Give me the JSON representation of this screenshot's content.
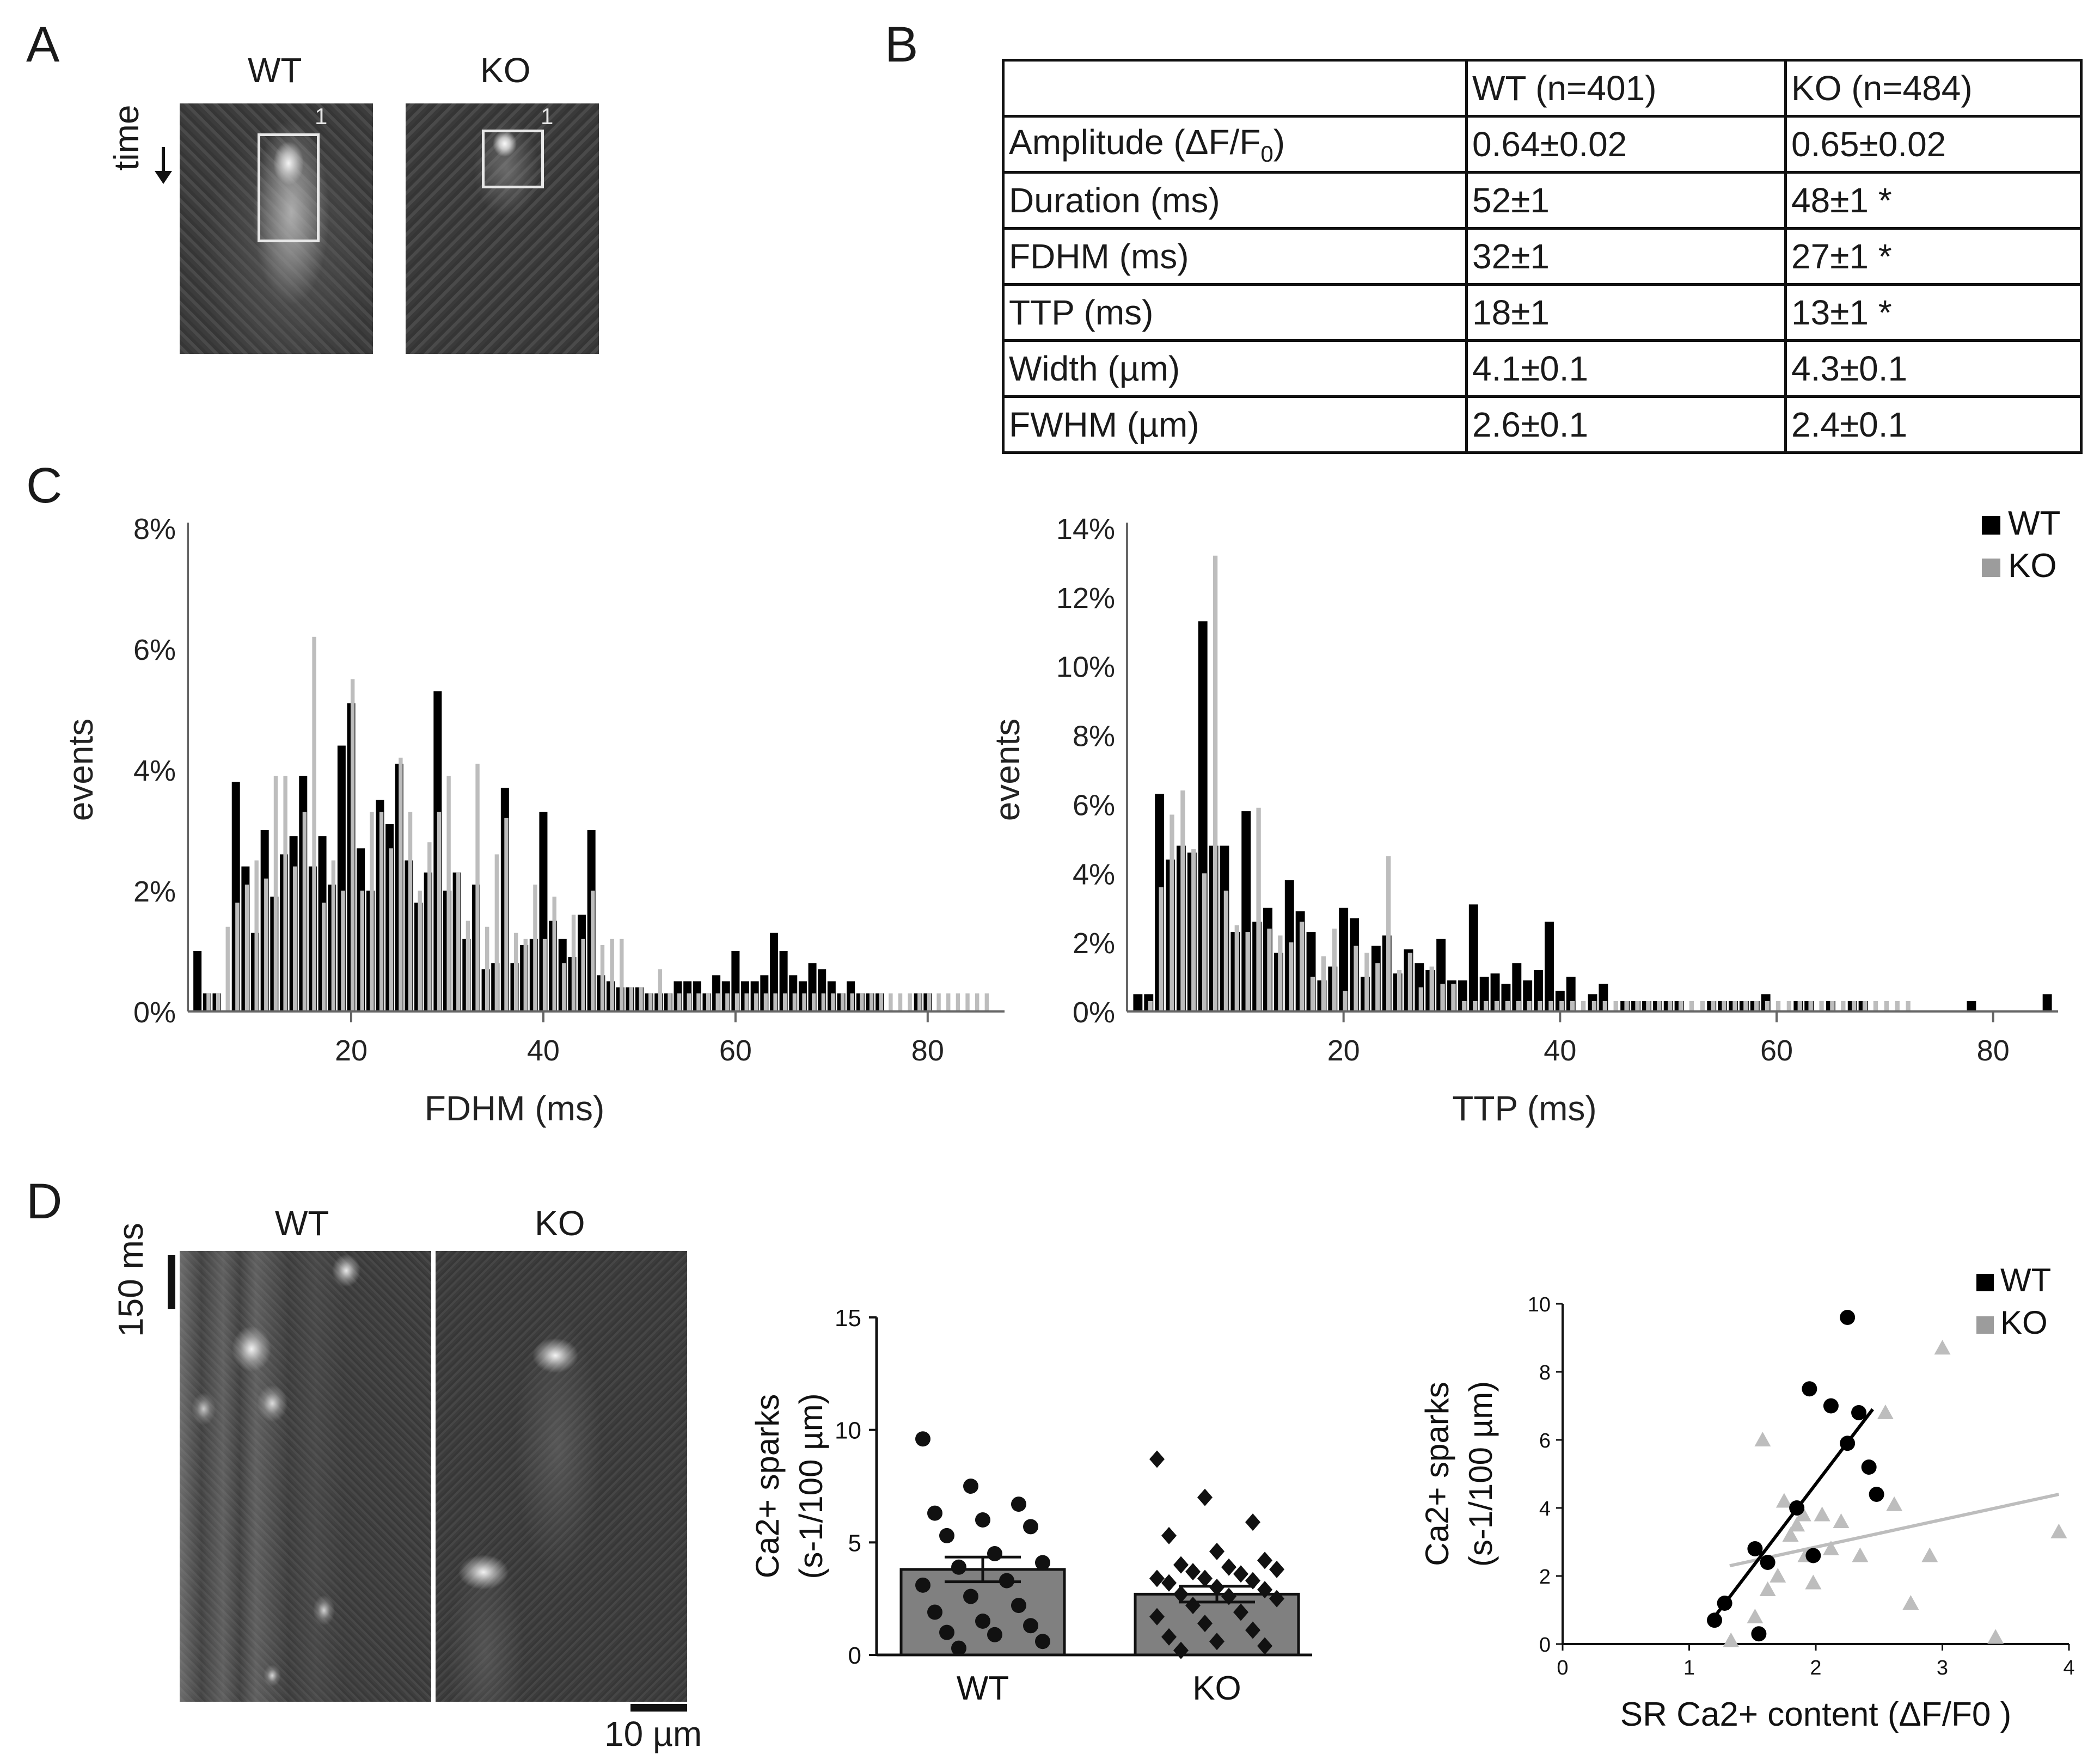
{
  "panels": {
    "a": "A",
    "b": "B",
    "c": "C",
    "d": "D"
  },
  "panel_a": {
    "wt_label": "WT",
    "ko_label": "KO",
    "time_label": "time",
    "roi_wt": "1",
    "roi_ko": "1"
  },
  "table": {
    "headers": [
      "",
      "WT (n=401)",
      "KO (n=484)"
    ],
    "rows": [
      [
        "Amplitude (ΔF/F0)",
        "0.64±0.02",
        "0.65±0.02"
      ],
      [
        "Duration (ms)",
        "52±1",
        "48±1 *"
      ],
      [
        "FDHM (ms)",
        "32±1",
        "27±1 *"
      ],
      [
        "TTP (ms)",
        "18±1",
        "13±1 *"
      ],
      [
        "Width (µm)",
        "4.1±0.1",
        "4.3±0.1"
      ],
      [
        "FWHM (µm)",
        "2.6±0.1",
        "2.4±0.1"
      ]
    ]
  },
  "panel_d": {
    "wt_label": "WT",
    "ko_label": "KO",
    "time_scale": "150 ms",
    "space_scale": "10 µm"
  },
  "colors": {
    "wt": "#000000",
    "ko": "#bdbdbd",
    "bar": "#808080"
  },
  "chart_data": [
    {
      "type": "bar",
      "id": "fdhm_hist",
      "title": "",
      "xlabel": "FDHM (ms)",
      "ylabel": "events",
      "xlim": [
        3,
        88
      ],
      "ylim": [
        0,
        8
      ],
      "yticks": [
        "0%",
        "2%",
        "4%",
        "6%",
        "8%"
      ],
      "xticks": [
        20,
        40,
        60,
        80
      ],
      "series": [
        {
          "name": "WT",
          "x": [
            4,
            5,
            6,
            8,
            9,
            10,
            11,
            12,
            13,
            14,
            15,
            16,
            17,
            18,
            19,
            20,
            21,
            22,
            23,
            24,
            25,
            26,
            27,
            28,
            29,
            30,
            31,
            32,
            33,
            34,
            35,
            36,
            37,
            38,
            39,
            40,
            41,
            42,
            43,
            44,
            45,
            46,
            47,
            48,
            49,
            50,
            51,
            52,
            53,
            54,
            55,
            56,
            57,
            58,
            59,
            60,
            61,
            62,
            63,
            64,
            65,
            66,
            67,
            68,
            69,
            70,
            71,
            72,
            73,
            74,
            75,
            79,
            80
          ],
          "values": [
            1.0,
            0.3,
            0.3,
            3.8,
            2.4,
            1.3,
            3.0,
            1.9,
            2.6,
            2.9,
            3.9,
            2.4,
            2.9,
            2.1,
            4.4,
            5.1,
            2.7,
            2.0,
            3.5,
            3.1,
            4.1,
            2.5,
            1.8,
            2.3,
            5.3,
            2.0,
            2.3,
            1.2,
            2.1,
            0.7,
            0.8,
            3.7,
            0.8,
            1.1,
            1.2,
            3.3,
            1.5,
            1.2,
            0.9,
            1.6,
            3.0,
            0.6,
            0.5,
            0.4,
            0.4,
            0.4,
            0.3,
            0.3,
            0.3,
            0.5,
            0.5,
            0.5,
            0.3,
            0.6,
            0.5,
            1.0,
            0.5,
            0.5,
            0.6,
            1.3,
            1.0,
            0.6,
            0.5,
            0.8,
            0.7,
            0.5,
            0.3,
            0.5,
            0.3,
            0.3,
            0.3,
            0.3,
            0.3
          ]
        },
        {
          "name": "KO",
          "x": [
            5,
            6,
            7,
            8,
            9,
            10,
            11,
            12,
            13,
            14,
            15,
            16,
            17,
            18,
            19,
            20,
            21,
            22,
            23,
            24,
            25,
            26,
            27,
            28,
            29,
            30,
            31,
            32,
            33,
            34,
            35,
            36,
            37,
            38,
            39,
            40,
            41,
            42,
            43,
            44,
            45,
            46,
            47,
            48,
            49,
            50,
            51,
            52,
            53,
            54,
            55,
            56,
            57,
            58,
            59,
            60,
            61,
            62,
            63,
            64,
            65,
            66,
            67,
            68,
            69,
            70,
            71,
            72,
            73,
            74,
            75,
            76,
            77,
            78,
            79,
            80,
            81,
            82,
            83,
            84,
            85,
            86
          ],
          "values": [
            0.3,
            0.3,
            1.4,
            1.8,
            2.1,
            2.5,
            2.2,
            3.9,
            3.9,
            2.4,
            3.3,
            6.2,
            1.8,
            2.5,
            2.0,
            5.5,
            2.0,
            3.3,
            3.3,
            2.7,
            4.2,
            3.3,
            2.0,
            2.8,
            3.3,
            3.9,
            2.3,
            1.5,
            4.1,
            1.4,
            2.6,
            3.2,
            1.3,
            1.2,
            2.1,
            1.2,
            1.9,
            0.8,
            1.6,
            1.2,
            2.0,
            1.1,
            1.2,
            1.2,
            0.4,
            0.4,
            0.3,
            0.7,
            0.3,
            0.3,
            0.3,
            0.3,
            0.3,
            0.3,
            0.3,
            0.3,
            0.3,
            0.3,
            0.3,
            0.3,
            0.3,
            0.3,
            0.3,
            0.3,
            0.3,
            0.3,
            0.3,
            0.3,
            0.3,
            0.3,
            0.3,
            0.3,
            0.3,
            0.3,
            0.3,
            0.3,
            0.3,
            0.3,
            0.3,
            0.3,
            0.3,
            0.3
          ]
        }
      ]
    },
    {
      "type": "bar",
      "id": "ttp_hist",
      "title": "",
      "xlabel": "TTP (ms)",
      "ylabel": "events",
      "xlim": [
        0,
        86
      ],
      "ylim": [
        0,
        14
      ],
      "yticks": [
        "0%",
        "2%",
        "4%",
        "6%",
        "8%",
        "10%",
        "12%",
        "14%"
      ],
      "xticks": [
        20,
        40,
        60,
        80
      ],
      "legend": [
        "WT",
        "KO"
      ],
      "series": [
        {
          "name": "WT",
          "x": [
            1,
            2,
            3,
            4,
            5,
            6,
            7,
            8,
            9,
            10,
            11,
            12,
            13,
            14,
            15,
            16,
            17,
            18,
            19,
            20,
            21,
            22,
            23,
            24,
            25,
            26,
            27,
            28,
            29,
            30,
            31,
            32,
            33,
            34,
            35,
            36,
            37,
            38,
            39,
            40,
            41,
            43,
            44,
            46,
            47,
            48,
            49,
            50,
            51,
            54,
            55,
            56,
            57,
            58,
            59,
            62,
            63,
            65,
            67,
            68,
            78,
            85
          ],
          "values": [
            0.5,
            0.5,
            6.3,
            4.4,
            4.8,
            4.6,
            11.3,
            4.8,
            4.8,
            2.3,
            5.8,
            2.6,
            3.0,
            1.7,
            3.8,
            2.9,
            2.3,
            0.9,
            1.3,
            3.0,
            2.7,
            1.0,
            1.9,
            2.2,
            1.1,
            1.8,
            1.4,
            1.2,
            2.1,
            0.9,
            0.9,
            3.1,
            1.0,
            1.1,
            0.8,
            1.4,
            0.9,
            1.2,
            2.6,
            0.6,
            1.0,
            0.5,
            0.8,
            0.3,
            0.3,
            0.3,
            0.3,
            0.3,
            0.3,
            0.3,
            0.3,
            0.3,
            0.3,
            0.3,
            0.5,
            0.3,
            0.3,
            0.3,
            0.3,
            0.3,
            0.3,
            0.5
          ]
        },
        {
          "name": "KO",
          "x": [
            2,
            3,
            4,
            5,
            6,
            7,
            8,
            9,
            10,
            11,
            12,
            13,
            14,
            15,
            16,
            17,
            18,
            19,
            20,
            21,
            22,
            23,
            24,
            25,
            26,
            27,
            28,
            29,
            30,
            31,
            32,
            33,
            34,
            35,
            36,
            37,
            38,
            39,
            40,
            41,
            42,
            43,
            44,
            45,
            46,
            47,
            48,
            49,
            50,
            51,
            52,
            53,
            54,
            55,
            56,
            57,
            58,
            59,
            60,
            61,
            62,
            63,
            64,
            65,
            66,
            67,
            68,
            69,
            70,
            71,
            72
          ],
          "values": [
            0.3,
            3.6,
            5.7,
            6.4,
            4.7,
            4.0,
            13.2,
            3.5,
            2.5,
            2.3,
            5.9,
            2.4,
            2.2,
            2.0,
            2.6,
            1.0,
            1.6,
            2.4,
            0.6,
            1.9,
            1.7,
            1.4,
            4.5,
            1.2,
            1.7,
            0.7,
            1.3,
            0.8,
            0.8,
            0.3,
            0.3,
            0.3,
            0.3,
            0.3,
            0.3,
            0.3,
            0.3,
            0.3,
            0.3,
            0.3,
            0.3,
            0.3,
            0.3,
            0.3,
            0.3,
            0.3,
            0.3,
            0.3,
            0.3,
            0.3,
            0.3,
            0.3,
            0.3,
            0.3,
            0.3,
            0.3,
            0.3,
            0.3,
            0.3,
            0.3,
            0.3,
            0.3,
            0.3,
            0.3,
            0.3,
            0.3,
            0.3,
            0.3,
            0.3,
            0.3,
            0.3
          ]
        }
      ]
    },
    {
      "type": "bar",
      "id": "spark_freq",
      "title": "",
      "ylabel": "Ca2+ sparks (s-1/100 µm)",
      "ylim": [
        0,
        15
      ],
      "yticks": [
        0,
        5,
        10,
        15
      ],
      "categories": [
        "WT",
        "KO"
      ],
      "values": [
        3.8,
        2.7
      ],
      "sem": [
        0.55,
        0.35
      ],
      "points": {
        "WT": [
          9.6,
          7.5,
          6.7,
          6.3,
          6.0,
          5.7,
          5.3,
          4.5,
          4.1,
          3.9,
          3.3,
          3.1,
          2.6,
          2.2,
          1.9,
          1.5,
          1.3,
          1.0,
          0.9,
          0.6,
          0.3
        ],
        "KO": [
          8.7,
          7.0,
          5.9,
          5.3,
          4.6,
          4.2,
          4.0,
          3.9,
          3.8,
          3.7,
          3.6,
          3.4,
          3.4,
          3.3,
          3.2,
          3.0,
          2.9,
          2.7,
          2.6,
          2.5,
          2.2,
          1.9,
          1.7,
          1.4,
          1.1,
          0.8,
          0.6,
          0.4,
          0.2
        ]
      }
    },
    {
      "type": "scatter",
      "id": "sparks_vs_sr",
      "title": "",
      "xlabel": "SR Ca2+ content (ΔF/F0 )",
      "ylabel": "Ca2+ sparks (s-1/100 µm)",
      "xlim": [
        0,
        4
      ],
      "ylim": [
        0,
        10
      ],
      "xticks": [
        0,
        1,
        2,
        3,
        4
      ],
      "yticks": [
        0,
        2,
        4,
        6,
        8,
        10
      ],
      "legend": [
        "WT",
        "KO"
      ],
      "series": [
        {
          "name": "WT",
          "marker": "circle",
          "x": [
            1.2,
            1.28,
            1.52,
            1.62,
            1.85,
            1.95,
            2.12,
            2.25,
            2.25,
            2.34,
            2.42,
            2.48,
            1.98,
            1.55
          ],
          "y": [
            0.7,
            1.2,
            2.8,
            2.4,
            4.0,
            7.5,
            7.0,
            9.6,
            5.9,
            6.8,
            5.2,
            4.4,
            2.6,
            0.3
          ],
          "fit": {
            "x": [
              1.2,
              2.45
            ],
            "y": [
              0.8,
              6.9
            ]
          }
        },
        {
          "name": "KO",
          "marker": "triangle",
          "x": [
            1.33,
            1.52,
            1.58,
            1.62,
            1.7,
            1.75,
            1.8,
            1.85,
            1.9,
            1.92,
            1.98,
            2.05,
            2.12,
            2.2,
            2.35,
            2.55,
            2.62,
            2.75,
            2.9,
            3.0,
            3.42,
            3.92
          ],
          "y": [
            0.1,
            0.8,
            6.0,
            1.6,
            2.0,
            4.2,
            3.2,
            3.5,
            3.8,
            2.6,
            1.8,
            3.8,
            2.8,
            3.6,
            2.6,
            6.8,
            4.1,
            1.2,
            2.6,
            8.7,
            0.2,
            3.3
          ],
          "fit": {
            "x": [
              1.32,
              3.92
            ],
            "y": [
              2.3,
              4.4
            ]
          }
        }
      ]
    }
  ]
}
